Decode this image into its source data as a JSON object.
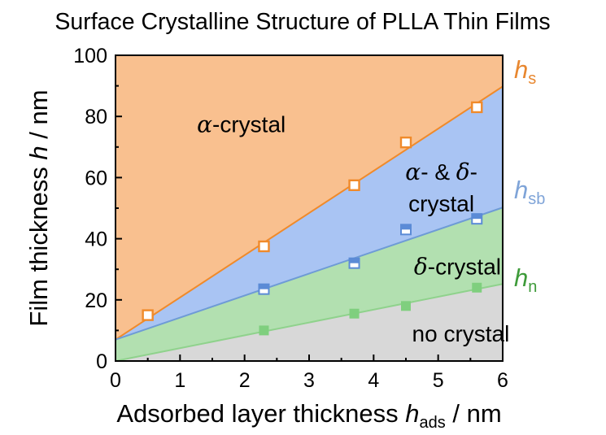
{
  "chart_data": {
    "type": "area",
    "title": "Surface Crystalline Structure of PLLA Thin Films",
    "xlabel": {
      "main": "Adsorbed layer thickness ",
      "var": "h",
      "sub": "ads",
      "unit": " / nm"
    },
    "ylabel": {
      "main": "Film thickness ",
      "var": "h",
      "unit": " / nm"
    },
    "xlim": [
      0,
      6
    ],
    "ylim": [
      0,
      100
    ],
    "x_ticks": [
      0,
      1,
      2,
      3,
      4,
      5,
      6
    ],
    "y_ticks": [
      0,
      20,
      40,
      60,
      80,
      100
    ],
    "colors": {
      "region_alpha": "#F9C08F",
      "region_mixed": "#A9C4F3",
      "region_delta": "#B2E0B0",
      "region_none": "#D8D8D8",
      "hs": "#F08A2A",
      "hsb": "#6E9BD6",
      "hn": "#8FD28C",
      "hs_label": "#E8872F",
      "hsb_label": "#7FA4D8",
      "hn_label": "#3E9B3A",
      "marker_orange": "#F08A2A",
      "marker_blue": "#5B8BD6",
      "marker_green": "#7FCF7E"
    },
    "regions": [
      {
        "label_sym": "α",
        "label_text": "-crystal",
        "label_line2": "",
        "anchor_x": 1.95,
        "anchor_y": 77.5
      },
      {
        "label_sym": "α",
        "label_text": "- & ",
        "label_sym2": "δ",
        "label_text2": "-",
        "label_line2": "crystal",
        "anchor_x": 5.05,
        "anchor_y": 62
      },
      {
        "label_sym": "δ",
        "label_text": "-crystal",
        "anchor_x": 5.3,
        "anchor_y": 31
      },
      {
        "label_text": "no crystal",
        "anchor_x": 5.35,
        "anchor_y": 9
      }
    ],
    "lines": [
      {
        "name": "h_s",
        "label_var": "h",
        "label_sub": "s",
        "intercept": 7,
        "slope": 13.8
      },
      {
        "name": "h_sb",
        "label_var": "h",
        "label_sub": "sb",
        "intercept": 7,
        "slope": 7.2
      },
      {
        "name": "h_n",
        "label_var": "h",
        "label_sub": "n",
        "intercept": 0,
        "slope": 4.2
      }
    ],
    "series": [
      {
        "name": "h_s",
        "marker": "open-square",
        "points": [
          [
            0.5,
            15
          ],
          [
            2.3,
            37.5
          ],
          [
            3.7,
            57.5
          ],
          [
            4.5,
            71.5
          ],
          [
            5.6,
            83
          ]
        ]
      },
      {
        "name": "h_sb",
        "marker": "half-filled-square",
        "points": [
          [
            2.3,
            23.5
          ],
          [
            3.7,
            32
          ],
          [
            4.5,
            43
          ],
          [
            5.6,
            46.5
          ]
        ]
      },
      {
        "name": "h_n",
        "marker": "filled-square",
        "points": [
          [
            2.3,
            10
          ],
          [
            3.7,
            15.5
          ],
          [
            4.5,
            18
          ],
          [
            5.6,
            24
          ]
        ]
      }
    ]
  }
}
